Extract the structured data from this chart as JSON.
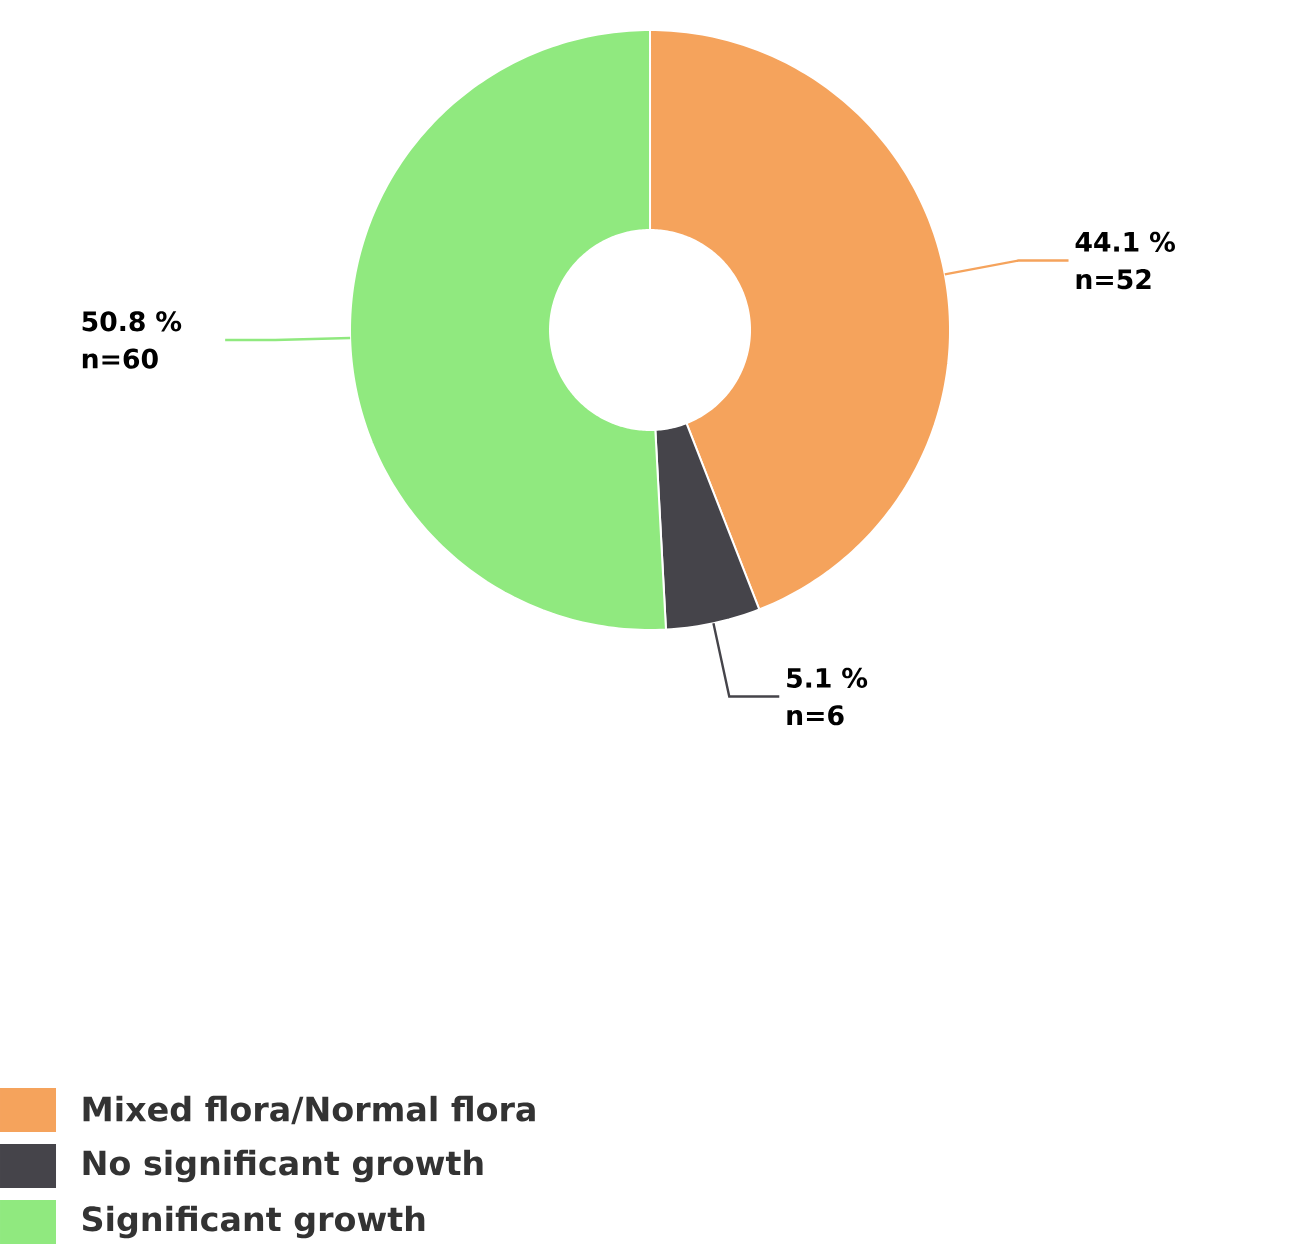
{
  "chart_data": {
    "type": "donut",
    "categories": [
      "Mixed flora/Normal flora",
      "No significant growth",
      "Significant growth"
    ],
    "values": [
      52,
      6,
      60
    ],
    "value_labels": [
      "44.1 % n=52",
      "5.1 % n=6",
      "50.8 % n=60"
    ],
    "colors": [
      "#f5a35c",
      "#45444a",
      "#90e97f"
    ],
    "legend": "bottom"
  }
}
